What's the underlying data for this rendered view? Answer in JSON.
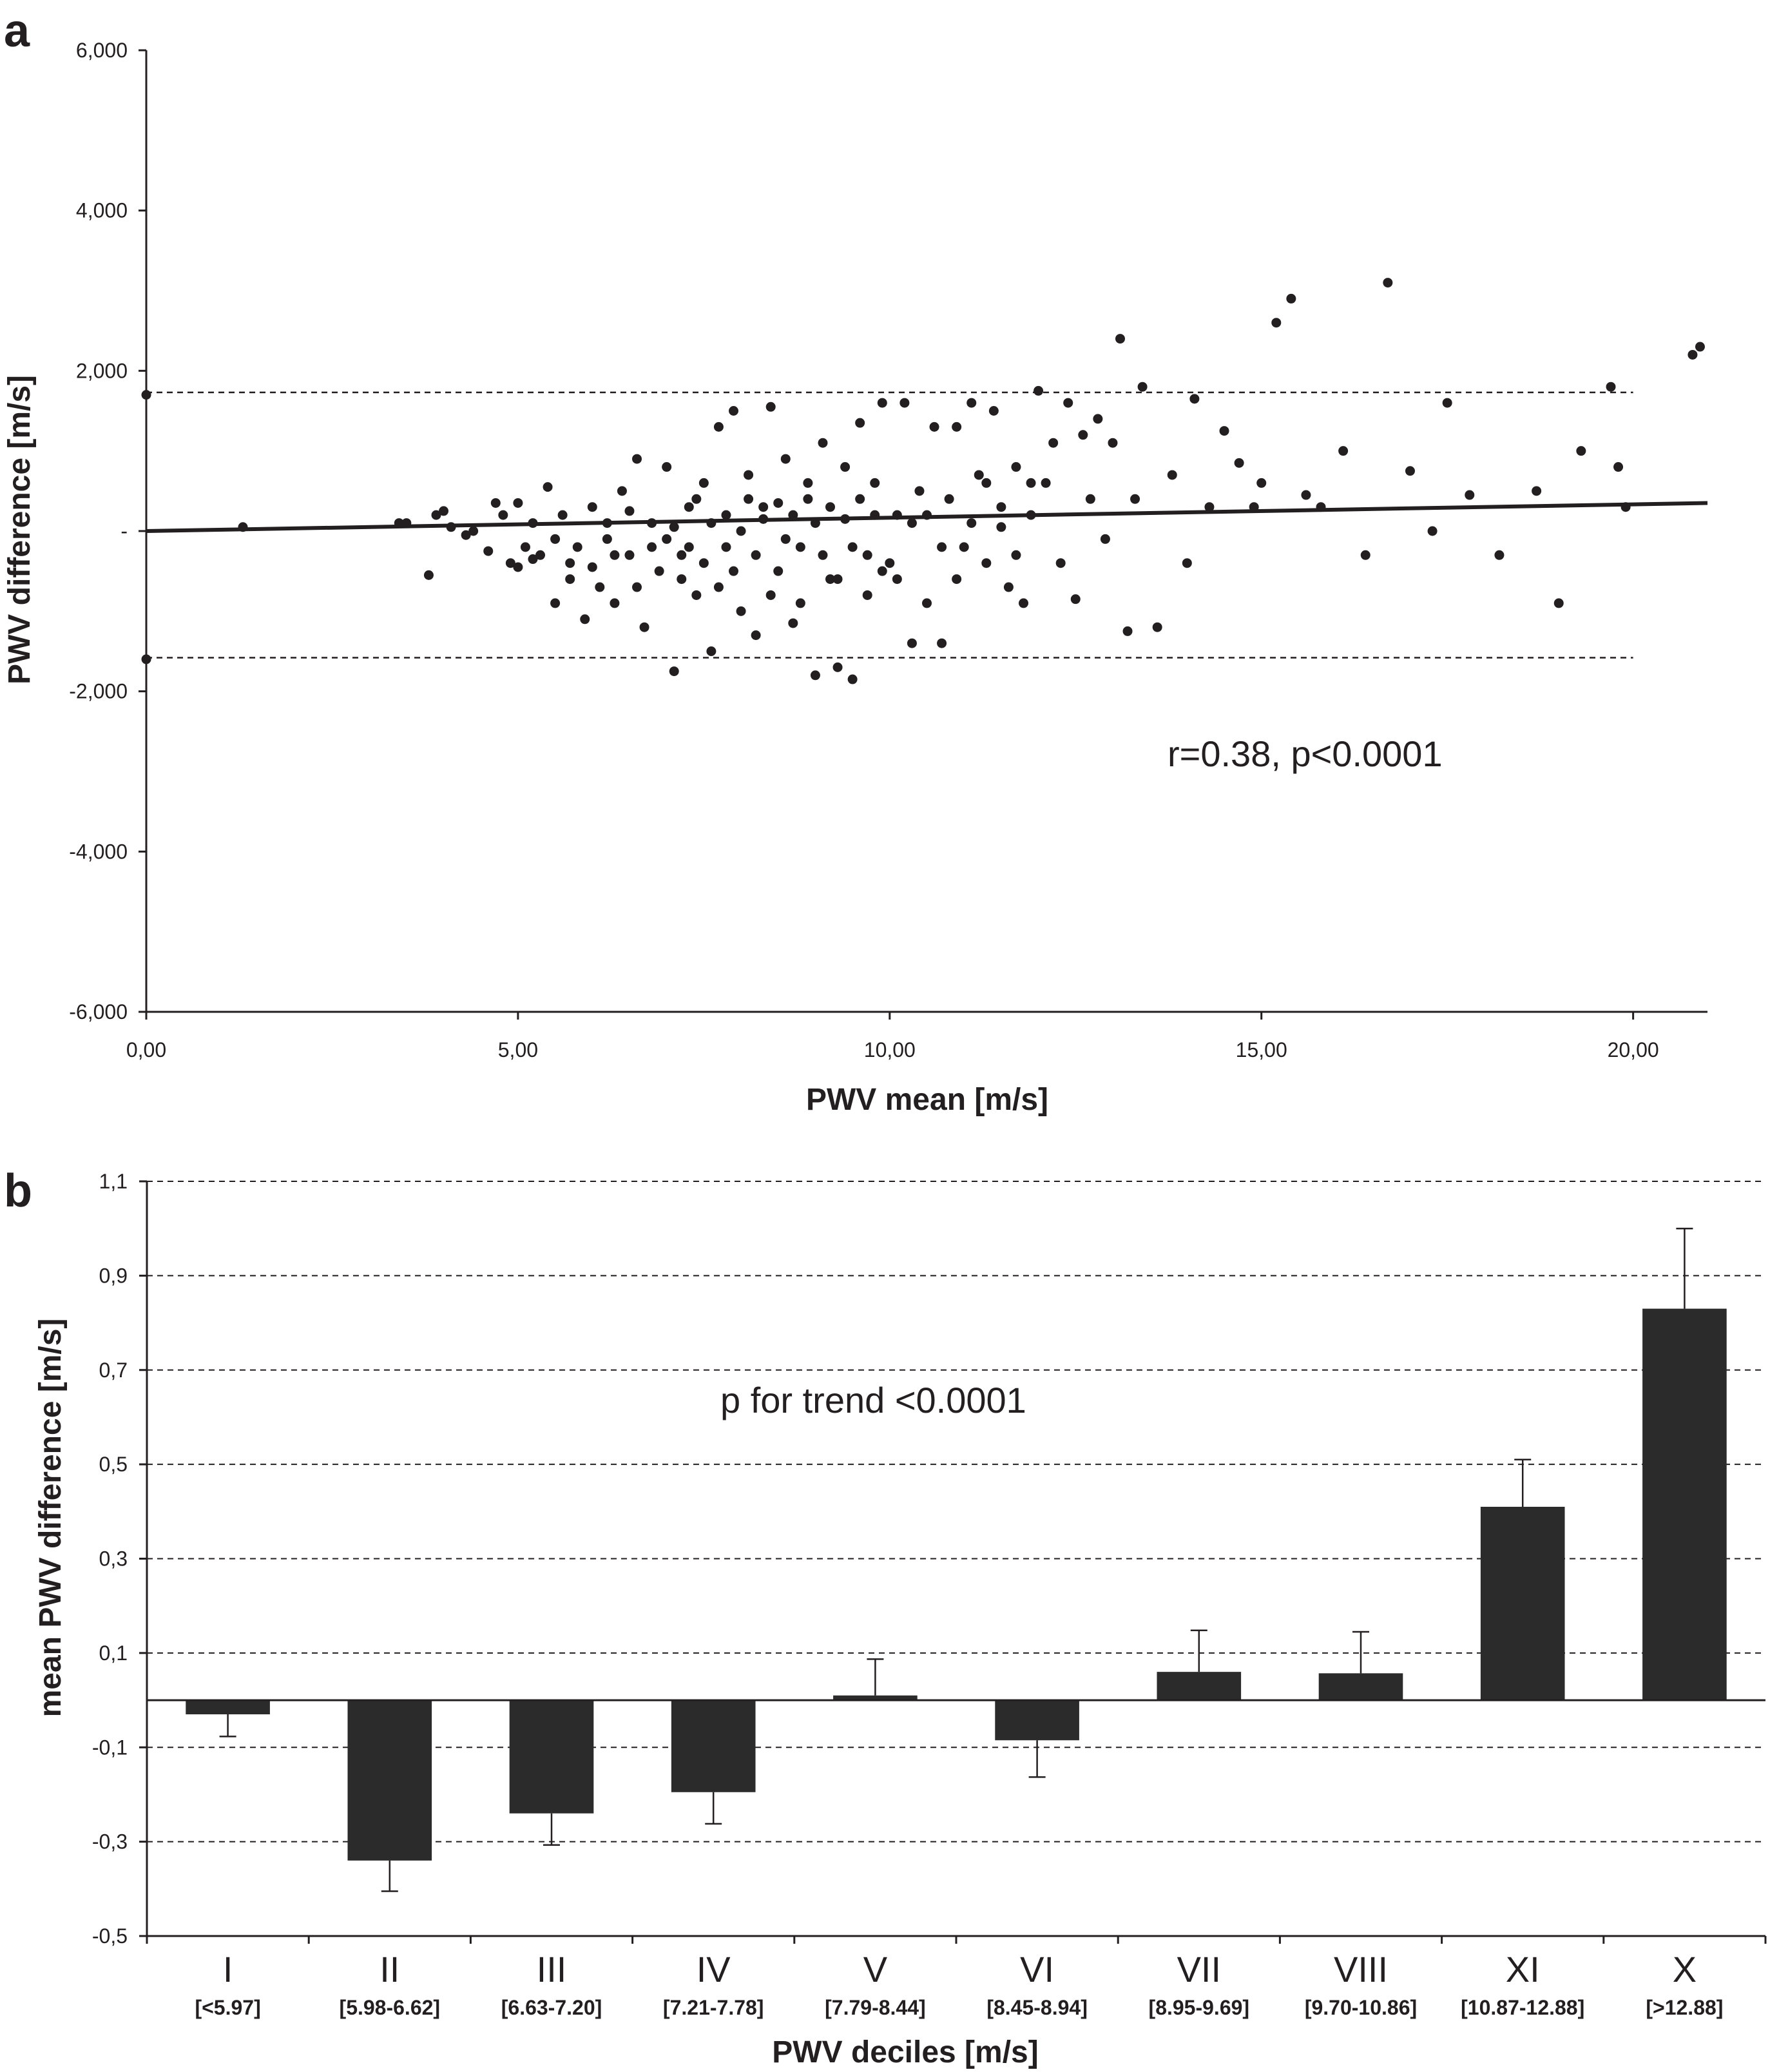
{
  "chart_data": [
    {
      "type": "scatter",
      "panel_label": "a",
      "xlabel": "PWV mean [m/s]",
      "ylabel": "PWV difference [m/s]",
      "xlim": [
        0,
        21
      ],
      "ylim": [
        -6000,
        6000
      ],
      "x_ticks": [
        {
          "value": 0,
          "label": "0,00"
        },
        {
          "value": 5,
          "label": "5,00"
        },
        {
          "value": 10,
          "label": "10,00"
        },
        {
          "value": 15,
          "label": "15,00"
        },
        {
          "value": 20,
          "label": "20,00"
        }
      ],
      "y_ticks": [
        {
          "value": 6000,
          "label": "6,000"
        },
        {
          "value": 4000,
          "label": "4,000"
        },
        {
          "value": 2000,
          "label": "2,000"
        },
        {
          "value": 0,
          "label": "-"
        },
        {
          "value": -2000,
          "label": "-2,000"
        },
        {
          "value": -4000,
          "label": "-4,000"
        },
        {
          "value": -6000,
          "label": "-6,000"
        }
      ],
      "annotation": "r=0.38, p<0.0001",
      "limits_of_agreement": [
        1730,
        -1580
      ],
      "regression_line": {
        "x": [
          0,
          21
        ],
        "y": [
          0,
          350
        ]
      },
      "points": [
        [
          0.0,
          1700
        ],
        [
          0.0,
          -1600
        ],
        [
          1.3,
          50
        ],
        [
          3.4,
          100
        ],
        [
          3.5,
          100
        ],
        [
          3.8,
          -550
        ],
        [
          3.9,
          200
        ],
        [
          4.0,
          250
        ],
        [
          4.1,
          50
        ],
        [
          4.3,
          -50
        ],
        [
          4.4,
          0
        ],
        [
          4.6,
          -250
        ],
        [
          4.7,
          350
        ],
        [
          4.8,
          200
        ],
        [
          4.9,
          -400
        ],
        [
          5.0,
          350
        ],
        [
          5.1,
          -200
        ],
        [
          5.2,
          100
        ],
        [
          5.3,
          -300
        ],
        [
          5.4,
          550
        ],
        [
          5.5,
          -900
        ],
        [
          5.6,
          200
        ],
        [
          5.7,
          -600
        ],
        [
          5.8,
          -200
        ],
        [
          5.9,
          -1100
        ],
        [
          6.0,
          300
        ],
        [
          6.1,
          -700
        ],
        [
          6.2,
          -100
        ],
        [
          6.3,
          -900
        ],
        [
          6.4,
          500
        ],
        [
          6.5,
          -300
        ],
        [
          6.6,
          900
        ],
        [
          6.7,
          -1200
        ],
        [
          6.8,
          100
        ],
        [
          6.9,
          -500
        ],
        [
          7.0,
          800
        ],
        [
          7.1,
          -1750
        ],
        [
          7.2,
          -300
        ],
        [
          7.3,
          300
        ],
        [
          7.4,
          -800
        ],
        [
          7.5,
          600
        ],
        [
          7.6,
          -1500
        ],
        [
          7.7,
          1300
        ],
        [
          7.8,
          -200
        ],
        [
          7.9,
          1500
        ],
        [
          8.0,
          -1000
        ],
        [
          8.1,
          700
        ],
        [
          8.2,
          -1300
        ],
        [
          8.3,
          300
        ],
        [
          8.4,
          1550
        ],
        [
          8.5,
          -500
        ],
        [
          8.6,
          900
        ],
        [
          8.7,
          -1150
        ],
        [
          8.8,
          -200
        ],
        [
          8.9,
          600
        ],
        [
          9.0,
          -1800
        ],
        [
          9.1,
          1100
        ],
        [
          9.2,
          -600
        ],
        [
          9.3,
          -1700
        ],
        [
          9.4,
          800
        ],
        [
          9.5,
          -1850
        ],
        [
          9.6,
          1350
        ],
        [
          9.7,
          -300
        ],
        [
          9.8,
          600
        ],
        [
          9.9,
          1600
        ],
        [
          10.0,
          -400
        ],
        [
          10.1,
          200
        ],
        [
          10.2,
          1600
        ],
        [
          10.3,
          -1400
        ],
        [
          10.4,
          500
        ],
        [
          10.5,
          -900
        ],
        [
          10.6,
          1300
        ],
        [
          10.7,
          -1400
        ],
        [
          10.8,
          400
        ],
        [
          10.9,
          1300
        ],
        [
          11.0,
          -200
        ],
        [
          11.1,
          1600
        ],
        [
          11.2,
          700
        ],
        [
          11.3,
          -400
        ],
        [
          11.4,
          1500
        ],
        [
          11.5,
          300
        ],
        [
          11.6,
          -700
        ],
        [
          11.7,
          800
        ],
        [
          11.8,
          -900
        ],
        [
          11.9,
          200
        ],
        [
          12.0,
          1750
        ],
        [
          12.1,
          600
        ],
        [
          12.2,
          1100
        ],
        [
          12.3,
          -400
        ],
        [
          12.4,
          1600
        ],
        [
          12.5,
          -850
        ],
        [
          12.6,
          1200
        ],
        [
          12.7,
          400
        ],
        [
          12.8,
          1400
        ],
        [
          12.9,
          -100
        ],
        [
          13.0,
          1100
        ],
        [
          13.1,
          2400
        ],
        [
          13.2,
          -1250
        ],
        [
          13.3,
          400
        ],
        [
          13.4,
          1800
        ],
        [
          13.6,
          -1200
        ],
        [
          13.8,
          700
        ],
        [
          14.0,
          -400
        ],
        [
          14.1,
          1650
        ],
        [
          14.3,
          300
        ],
        [
          14.5,
          1250
        ],
        [
          14.7,
          850
        ],
        [
          14.9,
          300
        ],
        [
          15.0,
          600
        ],
        [
          15.2,
          2600
        ],
        [
          15.4,
          2900
        ],
        [
          15.6,
          450
        ],
        [
          15.8,
          300
        ],
        [
          16.1,
          1000
        ],
        [
          16.4,
          -300
        ],
        [
          16.7,
          3100
        ],
        [
          17.0,
          750
        ],
        [
          17.3,
          0
        ],
        [
          17.5,
          1600
        ],
        [
          17.8,
          450
        ],
        [
          18.2,
          -300
        ],
        [
          18.7,
          500
        ],
        [
          19.0,
          -900
        ],
        [
          19.3,
          1000
        ],
        [
          19.7,
          1800
        ],
        [
          19.8,
          800
        ],
        [
          19.9,
          300
        ],
        [
          20.8,
          2200
        ],
        [
          20.9,
          2300
        ],
        [
          5.0,
          -450
        ],
        [
          5.2,
          -350
        ],
        [
          5.5,
          -100
        ],
        [
          5.7,
          -400
        ],
        [
          6.0,
          -450
        ],
        [
          6.2,
          100
        ],
        [
          6.3,
          -300
        ],
        [
          6.5,
          250
        ],
        [
          6.6,
          -700
        ],
        [
          6.8,
          -200
        ],
        [
          7.0,
          -100
        ],
        [
          7.1,
          50
        ],
        [
          7.2,
          -600
        ],
        [
          7.3,
          -200
        ],
        [
          7.4,
          400
        ],
        [
          7.5,
          -400
        ],
        [
          7.6,
          100
        ],
        [
          7.7,
          -700
        ],
        [
          7.8,
          200
        ],
        [
          7.9,
          -500
        ],
        [
          8.0,
          0
        ],
        [
          8.1,
          400
        ],
        [
          8.2,
          -300
        ],
        [
          8.3,
          150
        ],
        [
          8.4,
          -800
        ],
        [
          8.5,
          350
        ],
        [
          8.6,
          -100
        ],
        [
          8.7,
          200
        ],
        [
          8.8,
          -900
        ],
        [
          8.9,
          400
        ],
        [
          9.0,
          100
        ],
        [
          9.1,
          -300
        ],
        [
          9.2,
          300
        ],
        [
          9.3,
          -600
        ],
        [
          9.4,
          150
        ],
        [
          9.5,
          -200
        ],
        [
          9.6,
          400
        ],
        [
          9.7,
          -800
        ],
        [
          9.8,
          200
        ],
        [
          9.9,
          -500
        ],
        [
          10.1,
          -600
        ],
        [
          10.3,
          100
        ],
        [
          10.5,
          200
        ],
        [
          10.7,
          -200
        ],
        [
          10.9,
          -600
        ],
        [
          11.1,
          100
        ],
        [
          11.3,
          600
        ],
        [
          11.5,
          50
        ],
        [
          11.7,
          -300
        ],
        [
          11.9,
          600
        ]
      ]
    },
    {
      "type": "bar",
      "panel_label": "b",
      "xlabel": "PWV deciles [m/s]",
      "ylabel": "mean PWV difference [m/s]",
      "ylim": [
        -0.5,
        1.1
      ],
      "y_ticks": [
        {
          "value": 1.1,
          "label": "1,1"
        },
        {
          "value": 0.9,
          "label": "0,9"
        },
        {
          "value": 0.7,
          "label": "0,7"
        },
        {
          "value": 0.5,
          "label": "0,5"
        },
        {
          "value": 0.3,
          "label": "0,3"
        },
        {
          "value": 0.1,
          "label": "0,1"
        },
        {
          "value": -0.1,
          "label": "-0,1"
        },
        {
          "value": -0.3,
          "label": "-0,3"
        },
        {
          "value": -0.5,
          "label": "-0,5"
        }
      ],
      "grid": true,
      "annotation": "p for trend <0.0001",
      "categories": [
        "I",
        "II",
        "III",
        "IV",
        "V",
        "VI",
        "VII",
        "VIII",
        "XI",
        "X"
      ],
      "category_ranges": [
        "[<5.97]",
        "[5.98-6.62]",
        "[6.63-7.20]",
        "[7.21-7.78]",
        "[7.79-8.44]",
        "[8.45-8.94]",
        "[8.95-9.69]",
        "[9.70-10.86]",
        "[10.87-12.88]",
        "[>12.88]"
      ],
      "values": [
        -0.03,
        -0.34,
        -0.24,
        -0.195,
        0.01,
        -0.085,
        0.06,
        0.057,
        0.41,
        0.83
      ],
      "error_tips": [
        -0.077,
        -0.405,
        -0.307,
        -0.262,
        0.087,
        -0.163,
        0.148,
        0.145,
        0.51,
        1.0
      ]
    }
  ]
}
